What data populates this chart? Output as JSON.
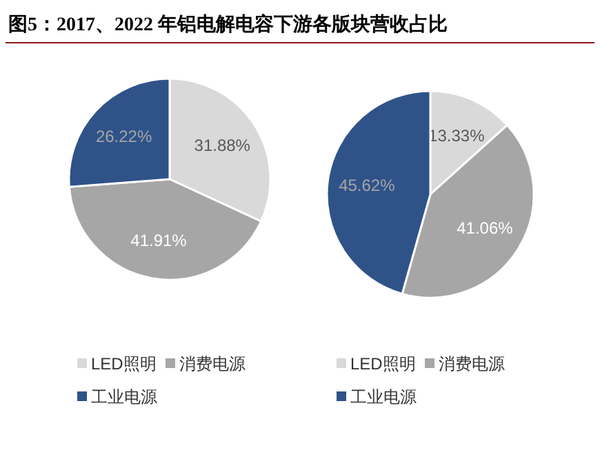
{
  "chart_data": [
    {
      "type": "pie",
      "title": "图5：2017、2022 年铝电解电容下游各版块营收占比",
      "categories": [
        "LED照明",
        "消费电源",
        "工业电源"
      ],
      "values": [
        31.88,
        41.91,
        26.22
      ],
      "value_labels": [
        "31.88%",
        "41.91%",
        "26.22%"
      ],
      "colors": [
        "#d9d9d9",
        "#a6a6a6",
        "#2f5389"
      ],
      "legend": "bottom"
    },
    {
      "type": "pie",
      "categories": [
        "LED照明",
        "消费电源",
        "工业电源"
      ],
      "values": [
        13.33,
        41.06,
        45.62
      ],
      "value_labels": [
        "13.33%",
        "41.06%",
        "45.62%"
      ],
      "colors": [
        "#d9d9d9",
        "#a6a6a6",
        "#2f5389"
      ],
      "legend": "bottom"
    }
  ]
}
